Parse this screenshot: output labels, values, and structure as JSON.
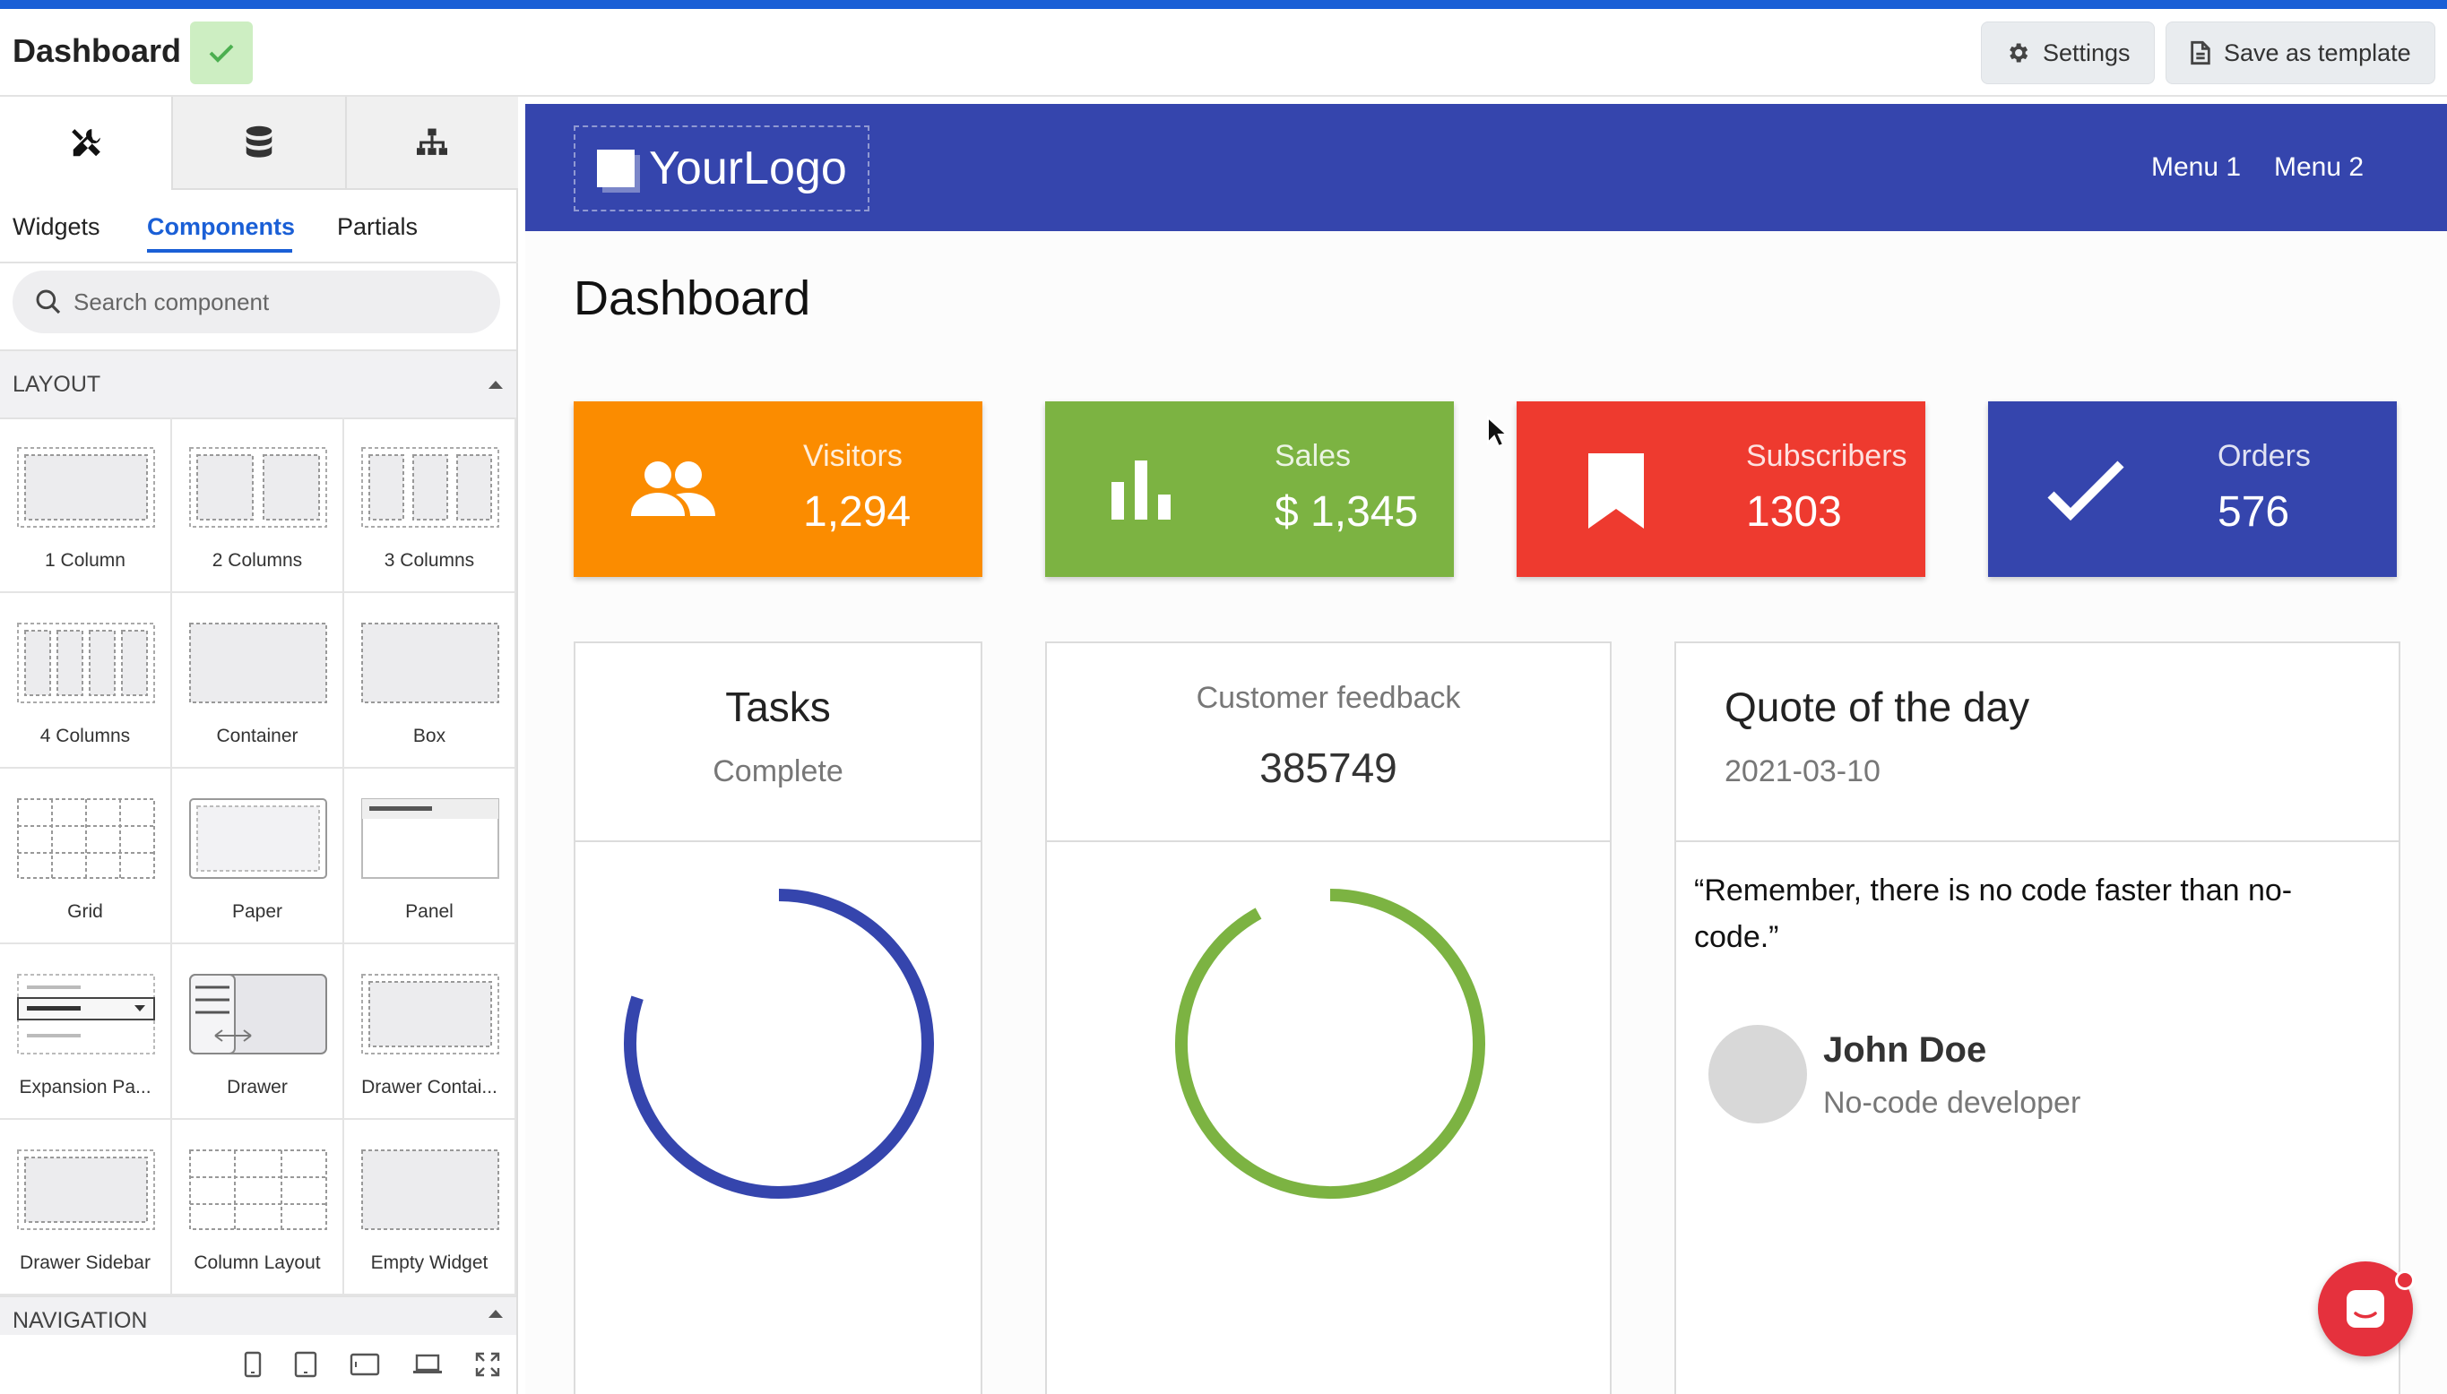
{
  "header": {
    "title": "Dashboard",
    "settings_label": "Settings",
    "save_template_label": "Save as template"
  },
  "sidebar": {
    "tabs": [
      "Widgets",
      "Components",
      "Partials"
    ],
    "active_tab": "Components",
    "search_placeholder": "Search component",
    "layout_section": "LAYOUT",
    "navigation_section": "NAVIGATION",
    "components": [
      {
        "label": "1 Column",
        "icon": "one-column"
      },
      {
        "label": "2 Columns",
        "icon": "two-columns"
      },
      {
        "label": "3 Columns",
        "icon": "three-columns"
      },
      {
        "label": "4 Columns",
        "icon": "four-columns"
      },
      {
        "label": "Container",
        "icon": "container"
      },
      {
        "label": "Box",
        "icon": "box"
      },
      {
        "label": "Grid",
        "icon": "grid"
      },
      {
        "label": "Paper",
        "icon": "paper"
      },
      {
        "label": "Panel",
        "icon": "panel"
      },
      {
        "label": "Expansion Pa...",
        "icon": "expansion-panel"
      },
      {
        "label": "Drawer",
        "icon": "drawer"
      },
      {
        "label": "Drawer Contai...",
        "icon": "drawer-container"
      },
      {
        "label": "Drawer Sidebar",
        "icon": "drawer-sidebar"
      },
      {
        "label": "Column Layout",
        "icon": "column-layout"
      },
      {
        "label": "Empty Widget",
        "icon": "empty-widget"
      }
    ]
  },
  "canvas": {
    "logo_your": "Your",
    "logo_logo": "Logo",
    "menu": [
      "Menu 1",
      "Menu 2"
    ],
    "page_title": "Dashboard",
    "stats": [
      {
        "label": "Visitors",
        "value": "1,294",
        "color": "#fb8c00",
        "icon": "people-icon"
      },
      {
        "label": "Sales",
        "value": "$ 1,345",
        "color": "#7cb342",
        "icon": "bar-chart-icon"
      },
      {
        "label": "Subscribers",
        "value": "1303",
        "color": "#ee3a2f",
        "icon": "bookmark-icon"
      },
      {
        "label": "Orders",
        "value": "576",
        "color": "#3545ad",
        "icon": "check-icon"
      }
    ],
    "tasks": {
      "title": "Tasks",
      "subtitle": "Complete",
      "percent_label": "80%",
      "percent": 80,
      "color": "#3545ad"
    },
    "feedback": {
      "title": "Customer feedback",
      "value": "385749",
      "positive_label": "92%",
      "negative_label": "8%",
      "positive": 92,
      "color": "#7cb342"
    },
    "quote": {
      "title": "Quote of the day",
      "date": "2021-03-10",
      "text": "“Remember, there is no code faster than no-code.”",
      "author": "John Doe",
      "role": "No-code developer"
    }
  }
}
